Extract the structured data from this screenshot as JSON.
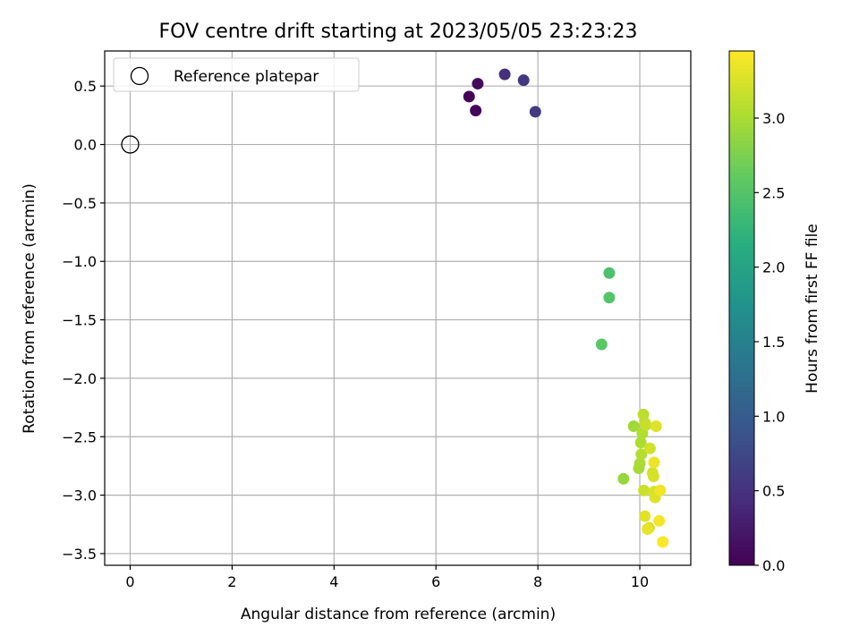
{
  "chart_data": {
    "type": "scatter",
    "title": "FOV centre drift starting at 2023/05/05 23:23:23",
    "xlabel": "Angular distance from reference (arcmin)",
    "ylabel": "Rotation from reference (arcmin)",
    "xlim": [
      -0.5,
      11
    ],
    "ylim": [
      -3.6,
      0.8
    ],
    "xticks": [
      0,
      2,
      4,
      6,
      8,
      10
    ],
    "xtick_labels": [
      "0",
      "2",
      "4",
      "6",
      "8",
      "10"
    ],
    "yticks": [
      0.5,
      0.0,
      -0.5,
      -1.0,
      -1.5,
      -2.0,
      -2.5,
      -3.0,
      -3.5
    ],
    "ytick_labels": [
      "0.5",
      "0.0",
      "−0.5",
      "−1.0",
      "−1.5",
      "−2.0",
      "−2.5",
      "−3.0",
      "−3.5"
    ],
    "grid": true,
    "legend": {
      "placement": "top-left",
      "entries": [
        "Reference platepar"
      ]
    },
    "reference_point": {
      "x": 0,
      "y": 0
    },
    "colorbar": {
      "label": "Hours from first FF file",
      "colormap": "viridis",
      "range": [
        0.0,
        3.45
      ],
      "ticks": [
        0.0,
        0.5,
        1.0,
        1.5,
        2.0,
        2.5,
        3.0
      ],
      "tick_labels": [
        "0.0",
        "0.5",
        "1.0",
        "1.5",
        "2.0",
        "2.5",
        "3.0"
      ]
    },
    "points": [
      {
        "x": 6.65,
        "y": 0.41,
        "c": 0.02
      },
      {
        "x": 6.78,
        "y": 0.29,
        "c": 0.06
      },
      {
        "x": 6.82,
        "y": 0.52,
        "c": 0.1
      },
      {
        "x": 7.35,
        "y": 0.6,
        "c": 0.45
      },
      {
        "x": 7.72,
        "y": 0.55,
        "c": 0.55
      },
      {
        "x": 7.95,
        "y": 0.28,
        "c": 0.58
      },
      {
        "x": 9.4,
        "y": -1.1,
        "c": 2.45
      },
      {
        "x": 9.4,
        "y": -1.31,
        "c": 2.5
      },
      {
        "x": 9.25,
        "y": -1.71,
        "c": 2.55
      },
      {
        "x": 9.68,
        "y": -2.86,
        "c": 2.9
      },
      {
        "x": 9.88,
        "y": -2.41,
        "c": 2.95
      },
      {
        "x": 9.98,
        "y": -2.77,
        "c": 2.98
      },
      {
        "x": 10.0,
        "y": -2.73,
        "c": 3.0
      },
      {
        "x": 10.02,
        "y": -2.55,
        "c": 3.02
      },
      {
        "x": 10.05,
        "y": -2.47,
        "c": 3.04
      },
      {
        "x": 10.03,
        "y": -2.65,
        "c": 3.06
      },
      {
        "x": 10.07,
        "y": -2.31,
        "c": 3.1
      },
      {
        "x": 10.1,
        "y": -2.38,
        "c": 3.12
      },
      {
        "x": 10.12,
        "y": -2.4,
        "c": 3.15
      },
      {
        "x": 10.08,
        "y": -2.96,
        "c": 3.18
      },
      {
        "x": 10.2,
        "y": -2.6,
        "c": 3.2
      },
      {
        "x": 10.18,
        "y": -3.28,
        "c": 3.2
      },
      {
        "x": 10.25,
        "y": -2.81,
        "c": 3.22
      },
      {
        "x": 10.27,
        "y": -2.84,
        "c": 3.24
      },
      {
        "x": 10.28,
        "y": -2.97,
        "c": 3.25
      },
      {
        "x": 10.3,
        "y": -3.02,
        "c": 3.27
      },
      {
        "x": 10.32,
        "y": -2.41,
        "c": 3.28
      },
      {
        "x": 10.1,
        "y": -3.18,
        "c": 3.3
      },
      {
        "x": 10.15,
        "y": -3.29,
        "c": 3.33
      },
      {
        "x": 10.28,
        "y": -2.72,
        "c": 3.36
      },
      {
        "x": 10.4,
        "y": -2.96,
        "c": 3.38
      },
      {
        "x": 10.38,
        "y": -3.22,
        "c": 3.4
      },
      {
        "x": 10.45,
        "y": -3.4,
        "c": 3.44
      }
    ]
  }
}
